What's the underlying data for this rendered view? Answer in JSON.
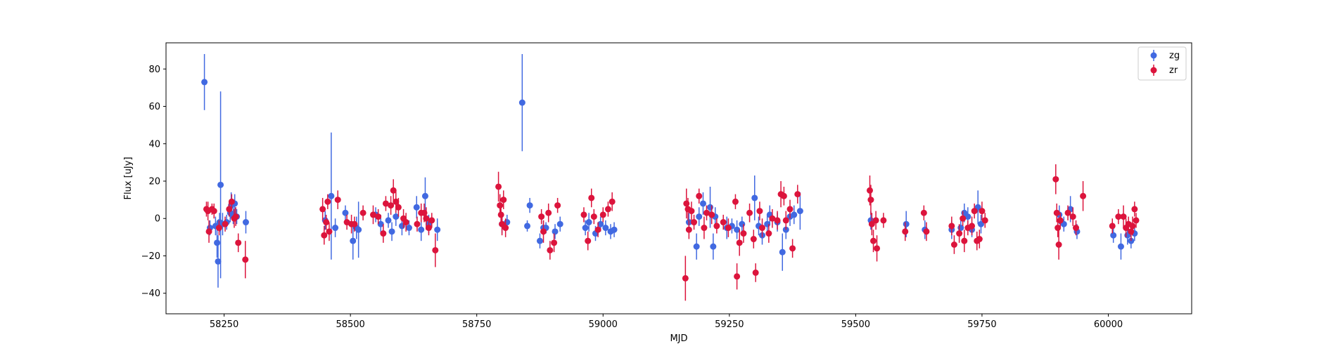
{
  "chart_data": {
    "type": "scatter",
    "title": "",
    "xlabel": "MJD",
    "ylabel": "Flux [uJy]",
    "xlim": [
      58135,
      60165
    ],
    "ylim": [
      -51,
      94
    ],
    "xticks": [
      58250,
      58500,
      58750,
      59000,
      59250,
      59500,
      59750,
      60000
    ],
    "yticks": [
      -40,
      -20,
      0,
      20,
      40,
      60,
      80
    ],
    "grid": false,
    "legend_position": "top-right",
    "series": [
      {
        "name": "zg",
        "color": "#4169e1",
        "points": [
          [
            58211,
            73,
            15
          ],
          [
            58222,
            -5,
            4
          ],
          [
            58233,
            -4,
            5
          ],
          [
            58236,
            -13,
            8
          ],
          [
            58238,
            -23,
            14
          ],
          [
            58241,
            -2,
            5
          ],
          [
            58243,
            18,
            50
          ],
          [
            58247,
            -3,
            6
          ],
          [
            58255,
            -2,
            4
          ],
          [
            58262,
            3,
            5
          ],
          [
            58264,
            7,
            7
          ],
          [
            58268,
            2,
            5
          ],
          [
            58271,
            8,
            5
          ],
          [
            58275,
            1,
            4
          ],
          [
            58293,
            -2,
            6
          ],
          [
            58450,
            -1,
            5
          ],
          [
            58462,
            12,
            34
          ],
          [
            58470,
            -5,
            5
          ],
          [
            58490,
            3,
            4
          ],
          [
            58505,
            -12,
            10
          ],
          [
            58512,
            -5,
            6
          ],
          [
            58516,
            -6,
            15
          ],
          [
            58550,
            2,
            4
          ],
          [
            58560,
            -3,
            5
          ],
          [
            58575,
            -1,
            4
          ],
          [
            58582,
            -7,
            5
          ],
          [
            58590,
            1,
            5
          ],
          [
            58602,
            -4,
            5
          ],
          [
            58616,
            -5,
            4
          ],
          [
            58631,
            6,
            6
          ],
          [
            58640,
            -6,
            6
          ],
          [
            58648,
            12,
            10
          ],
          [
            58655,
            -3,
            5
          ],
          [
            58672,
            -6,
            6
          ],
          [
            58800,
            -3,
            5
          ],
          [
            58810,
            -2,
            4
          ],
          [
            58840,
            62,
            26
          ],
          [
            58850,
            -4,
            3
          ],
          [
            58855,
            7,
            4
          ],
          [
            58875,
            -12,
            4
          ],
          [
            58882,
            -5,
            4
          ],
          [
            58887,
            -5,
            3
          ],
          [
            58905,
            -7,
            4
          ],
          [
            58915,
            -3,
            4
          ],
          [
            58965,
            -5,
            4
          ],
          [
            58972,
            -2,
            5
          ],
          [
            58985,
            -8,
            4
          ],
          [
            58995,
            -3,
            4
          ],
          [
            59005,
            -5,
            4
          ],
          [
            59015,
            -7,
            4
          ],
          [
            59022,
            -6,
            4
          ],
          [
            59170,
            -2,
            5
          ],
          [
            59185,
            -15,
            7
          ],
          [
            59190,
            1,
            5
          ],
          [
            59198,
            8,
            6
          ],
          [
            59212,
            6,
            11
          ],
          [
            59218,
            -15,
            7
          ],
          [
            59222,
            1,
            5
          ],
          [
            59245,
            -5,
            6
          ],
          [
            59255,
            -4,
            4
          ],
          [
            59265,
            -6,
            5
          ],
          [
            59275,
            -3,
            4
          ],
          [
            59300,
            11,
            12
          ],
          [
            59308,
            -4,
            5
          ],
          [
            59315,
            -9,
            5
          ],
          [
            59325,
            -3,
            5
          ],
          [
            59330,
            2,
            5
          ],
          [
            59345,
            -2,
            5
          ],
          [
            59355,
            -18,
            10
          ],
          [
            59362,
            -6,
            5
          ],
          [
            59370,
            1,
            5
          ],
          [
            59378,
            2,
            5
          ],
          [
            59390,
            4,
            10
          ],
          [
            59530,
            -1,
            5
          ],
          [
            59600,
            -3,
            7
          ],
          [
            59637,
            -6,
            5
          ],
          [
            59690,
            -6,
            5
          ],
          [
            59708,
            -5,
            4
          ],
          [
            59715,
            3,
            5
          ],
          [
            59722,
            1,
            5
          ],
          [
            59730,
            -6,
            4
          ],
          [
            59742,
            6,
            9
          ],
          [
            59748,
            -3,
            5
          ],
          [
            59903,
            2,
            5
          ],
          [
            59912,
            -3,
            4
          ],
          [
            59925,
            5,
            7
          ],
          [
            59938,
            -7,
            4
          ],
          [
            60010,
            -9,
            4
          ],
          [
            60025,
            -15,
            7
          ],
          [
            60038,
            -9,
            5
          ],
          [
            60045,
            -12,
            4
          ],
          [
            60052,
            -8,
            4
          ]
        ]
      },
      {
        "name": "zr",
        "color": "#dc143c",
        "points": [
          [
            58215,
            5,
            4
          ],
          [
            58218,
            4,
            5
          ],
          [
            58220,
            -7,
            6
          ],
          [
            58226,
            5,
            3
          ],
          [
            58230,
            4,
            4
          ],
          [
            58240,
            -5,
            4
          ],
          [
            58252,
            -3,
            4
          ],
          [
            58260,
            5,
            4
          ],
          [
            58265,
            9,
            4
          ],
          [
            58270,
            0,
            5
          ],
          [
            58273,
            1,
            5
          ],
          [
            58278,
            -13,
            5
          ],
          [
            58292,
            -22,
            10
          ],
          [
            58445,
            5,
            6
          ],
          [
            58448,
            -9,
            5
          ],
          [
            58452,
            -2,
            4
          ],
          [
            58455,
            9,
            4
          ],
          [
            58458,
            -7,
            5
          ],
          [
            58475,
            10,
            5
          ],
          [
            58493,
            -2,
            4
          ],
          [
            58502,
            -3,
            5
          ],
          [
            58508,
            -3,
            4
          ],
          [
            58525,
            3,
            4
          ],
          [
            58545,
            2,
            5
          ],
          [
            58555,
            1,
            4
          ],
          [
            58565,
            -8,
            5
          ],
          [
            58570,
            8,
            4
          ],
          [
            58580,
            7,
            5
          ],
          [
            58585,
            15,
            6
          ],
          [
            58590,
            9,
            6
          ],
          [
            58595,
            6,
            5
          ],
          [
            58605,
            0,
            5
          ],
          [
            58610,
            -2,
            5
          ],
          [
            58632,
            -3,
            4
          ],
          [
            58640,
            3,
            5
          ],
          [
            58646,
            3,
            5
          ],
          [
            58650,
            0,
            6
          ],
          [
            58655,
            -5,
            4
          ],
          [
            58661,
            -1,
            4
          ],
          [
            58668,
            -17,
            9
          ],
          [
            58793,
            17,
            8
          ],
          [
            58796,
            7,
            6
          ],
          [
            58798,
            2,
            4
          ],
          [
            58800,
            -3,
            6
          ],
          [
            58803,
            10,
            5
          ],
          [
            58807,
            -5,
            5
          ],
          [
            58878,
            1,
            4
          ],
          [
            58882,
            -7,
            6
          ],
          [
            58892,
            3,
            5
          ],
          [
            58895,
            -17,
            5
          ],
          [
            58903,
            -13,
            5
          ],
          [
            58910,
            7,
            4
          ],
          [
            58962,
            2,
            4
          ],
          [
            58970,
            -12,
            5
          ],
          [
            58977,
            11,
            5
          ],
          [
            58982,
            1,
            4
          ],
          [
            58990,
            -6,
            4
          ],
          [
            59000,
            2,
            4
          ],
          [
            59010,
            5,
            4
          ],
          [
            59018,
            9,
            5
          ],
          [
            59163,
            -32,
            12
          ],
          [
            59165,
            8,
            8
          ],
          [
            59168,
            5,
            6
          ],
          [
            59170,
            -6,
            5
          ],
          [
            59175,
            4,
            5
          ],
          [
            59180,
            -2,
            4
          ],
          [
            59190,
            12,
            4
          ],
          [
            59200,
            -5,
            6
          ],
          [
            59205,
            3,
            4
          ],
          [
            59215,
            2,
            5
          ],
          [
            59225,
            -4,
            4
          ],
          [
            59238,
            -2,
            4
          ],
          [
            59248,
            -5,
            5
          ],
          [
            59262,
            9,
            4
          ],
          [
            59265,
            -31,
            7
          ],
          [
            59270,
            -13,
            7
          ],
          [
            59278,
            -8,
            5
          ],
          [
            59290,
            3,
            5
          ],
          [
            59298,
            -11,
            5
          ],
          [
            59302,
            -29,
            5
          ],
          [
            59310,
            4,
            5
          ],
          [
            59315,
            -5,
            5
          ],
          [
            59328,
            -8,
            5
          ],
          [
            59335,
            0,
            5
          ],
          [
            59345,
            -1,
            5
          ],
          [
            59352,
            13,
            7
          ],
          [
            59358,
            12,
            5
          ],
          [
            59362,
            -1,
            5
          ],
          [
            59370,
            5,
            5
          ],
          [
            59375,
            -16,
            5
          ],
          [
            59385,
            13,
            5
          ],
          [
            59528,
            15,
            8
          ],
          [
            59530,
            10,
            8
          ],
          [
            59532,
            -3,
            6
          ],
          [
            59535,
            -12,
            6
          ],
          [
            59540,
            -1,
            5
          ],
          [
            59542,
            -16,
            7
          ],
          [
            59555,
            -1,
            4
          ],
          [
            59598,
            -7,
            5
          ],
          [
            59635,
            3,
            4
          ],
          [
            59640,
            -7,
            5
          ],
          [
            59690,
            -4,
            5
          ],
          [
            59695,
            -14,
            5
          ],
          [
            59705,
            -8,
            5
          ],
          [
            59712,
            0,
            4
          ],
          [
            59715,
            -12,
            6
          ],
          [
            59722,
            -5,
            4
          ],
          [
            59730,
            -4,
            5
          ],
          [
            59735,
            4,
            4
          ],
          [
            59740,
            -12,
            5
          ],
          [
            59745,
            -11,
            5
          ],
          [
            59750,
            4,
            5
          ],
          [
            59756,
            -1,
            4
          ],
          [
            59896,
            21,
            8
          ],
          [
            59898,
            3,
            5
          ],
          [
            59900,
            -5,
            5
          ],
          [
            59902,
            -14,
            8
          ],
          [
            59905,
            -1,
            4
          ],
          [
            59920,
            3,
            4
          ],
          [
            59930,
            1,
            5
          ],
          [
            59936,
            -5,
            4
          ],
          [
            59950,
            12,
            8
          ],
          [
            60008,
            -4,
            4
          ],
          [
            60020,
            1,
            4
          ],
          [
            60030,
            1,
            6
          ],
          [
            60035,
            -5,
            5
          ],
          [
            60040,
            -3,
            4
          ],
          [
            60045,
            -7,
            5
          ],
          [
            60048,
            -4,
            5
          ],
          [
            60052,
            5,
            4
          ],
          [
            60055,
            -1,
            4
          ]
        ]
      }
    ]
  }
}
